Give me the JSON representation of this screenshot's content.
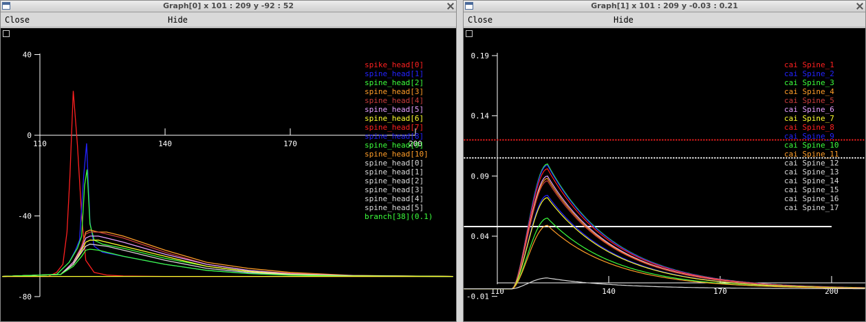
{
  "windows": [
    {
      "title": "Graph[0]  x 101 : 209  y -92 : 52",
      "menu": {
        "close": "Close",
        "hide": "Hide"
      },
      "chart_data": {
        "type": "line",
        "xlim": [
          101,
          209
        ],
        "ylim": [
          -92,
          52
        ],
        "x_ticks": [
          "110",
          "140",
          "170",
          "200"
        ],
        "y_ticks": [
          "40",
          "0",
          "-40",
          "-80"
        ],
        "legend_location": "top-right",
        "legend": [
          {
            "text": "spike_head[0]",
            "color": "#ff2020"
          },
          {
            "text": "spine_head[1]",
            "color": "#2323ff"
          },
          {
            "text": "spine_head[2]",
            "color": "#3cff3c"
          },
          {
            "text": "spine_head[3]",
            "color": "#ff9d28"
          },
          {
            "text": "spine_head[4]",
            "color": "#c83c3c"
          },
          {
            "text": "spine_head[5]",
            "color": "#e6a0ff"
          },
          {
            "text": "spine_head[6]",
            "color": "#ffff30"
          },
          {
            "text": "spine_head[7]",
            "color": "#ff2020"
          },
          {
            "text": "spine_head[8]",
            "color": "#2323ff"
          },
          {
            "text": "spine_head[9]",
            "color": "#3cff3c"
          },
          {
            "text": "spine_head[10]",
            "color": "#ff9d28"
          },
          {
            "text": "spine_head[0]",
            "color": "#d9d9d9"
          },
          {
            "text": "spine_head[1]",
            "color": "#d9d9d9"
          },
          {
            "text": "spine_head[2]",
            "color": "#d9d9d9"
          },
          {
            "text": "spine_head[3]",
            "color": "#d9d9d9"
          },
          {
            "text": "spine_head[4]",
            "color": "#d9d9d9"
          },
          {
            "text": "spine_head[5]",
            "color": "#d9d9d9"
          },
          {
            "text": "branch[38](0.1)",
            "color": "#3cff3c"
          }
        ],
        "series": [
          {
            "color": "#ff2020",
            "x": [
              101,
              112,
              114,
              115.5,
              116.5,
              117.2,
              118,
              119,
              120,
              121,
              123,
              126,
              130,
              140,
              150,
              160,
              180,
              209
            ],
            "y": [
              -70,
              -70,
              -68,
              -64,
              -48,
              -20,
              22,
              -5,
              -40,
              -62,
              -68,
              -69.3,
              -69.8,
              -70,
              -70,
              -70,
              -70,
              -70
            ]
          },
          {
            "color": "#2323ff",
            "x": [
              101,
              114,
              117,
              118.5,
              119.5,
              120.5,
              121.2,
              122,
              123,
              125,
              130,
              140,
              150,
              160,
              170,
              185,
              209
            ],
            "y": [
              -70,
              -69,
              -63,
              -57,
              -52,
              -20,
              -4,
              -43,
              -55,
              -58,
              -60,
              -64,
              -67,
              -68.5,
              -69.3,
              -69.8,
              -70
            ]
          },
          {
            "color": "#3cff3c",
            "x": [
              101,
              114,
              117,
              119,
              120,
              120.7,
              121.3,
              122,
              123,
              125,
              130,
              140,
              150,
              160,
              170,
              185,
              209
            ],
            "y": [
              -70,
              -69,
              -63,
              -56,
              -50,
              -25,
              -17,
              -44,
              -52,
              -54,
              -56,
              -61,
              -65,
              -67.5,
              -69,
              -69.8,
              -70
            ]
          },
          {
            "color": "#ff9d28",
            "x": [
              101,
              115,
              118,
              120,
              121,
              122,
              124,
              126,
              130,
              140,
              150,
              160,
              170,
              185,
              209
            ],
            "y": [
              -70,
              -69,
              -63,
              -55,
              -48,
              -47,
              -48,
              -48,
              -50,
              -57,
              -63,
              -66,
              -68,
              -69.5,
              -70
            ]
          },
          {
            "color": "#c83c3c",
            "x": [
              101,
              115,
              118,
              120,
              121,
              122,
              124,
              126,
              130,
              140,
              150,
              160,
              170,
              185,
              209
            ],
            "y": [
              -70,
              -69,
              -63,
              -55,
              -49,
              -48,
              -48,
              -49,
              -51,
              -58,
              -64,
              -67,
              -68.5,
              -69.6,
              -70
            ]
          },
          {
            "color": "#e6a0ff",
            "x": [
              101,
              115,
              118,
              120,
              121,
              122,
              124,
              126,
              130,
              140,
              150,
              160,
              170,
              185,
              209
            ],
            "y": [
              -70,
              -69,
              -63,
              -56,
              -51,
              -50,
              -50,
              -51,
              -53,
              -59,
              -64,
              -67,
              -68.7,
              -69.6,
              -70
            ]
          },
          {
            "color": "#ffff30",
            "x": [
              101,
              115,
              118,
              120,
              121,
              122,
              124,
              126,
              130,
              140,
              150,
              160,
              170,
              185,
              209
            ],
            "y": [
              -70,
              -69,
              -64,
              -57,
              -53,
              -52,
              -52,
              -53,
              -55,
              -60,
              -65,
              -67.5,
              -69,
              -69.7,
              -70
            ]
          },
          {
            "color": "#d9d9d9",
            "x": [
              101,
              115,
              118,
              120,
              121,
              122,
              124,
              126,
              130,
              140,
              150,
              160,
              170,
              185,
              209
            ],
            "y": [
              -70,
              -69,
              -64,
              -58,
              -55,
              -54,
              -54.5,
              -55,
              -57,
              -62,
              -66,
              -68,
              -69.2,
              -69.8,
              -70
            ]
          },
          {
            "color": "#3cff3c",
            "x": [
              101,
              115,
              118,
              120,
              121,
              122,
              124,
              126,
              130,
              140,
              150,
              160,
              170,
              185,
              209
            ],
            "y": [
              -70,
              -69,
              -65,
              -60,
              -57,
              -56.5,
              -57,
              -58,
              -60,
              -64,
              -67,
              -68.6,
              -69.4,
              -69.9,
              -70
            ]
          },
          {
            "color": "#ffff30",
            "x": [
              101,
              209
            ],
            "y": [
              -70,
              -70
            ]
          }
        ]
      }
    },
    {
      "title": "Graph[1]  x 101 : 209  y -0.03 : 0.21",
      "menu": {
        "close": "Close",
        "hide": "Hide"
      },
      "chart_data": {
        "type": "line",
        "xlim": [
          101,
          209
        ],
        "ylim": [
          -0.03,
          0.21
        ],
        "x_ticks": [
          "110",
          "140",
          "170",
          "200"
        ],
        "y_ticks": [
          "0.19",
          "0.14",
          "0.09",
          "0.04",
          "-0.01"
        ],
        "legend_location": "top-right",
        "legend": [
          {
            "text": "cai Spine_1",
            "color": "#ff2020"
          },
          {
            "text": "cai Spine_2",
            "color": "#2323ff"
          },
          {
            "text": "cai Spine_3",
            "color": "#3cff3c"
          },
          {
            "text": "cai Spine_4",
            "color": "#ff9d28"
          },
          {
            "text": "cai Spine_5",
            "color": "#c83c3c"
          },
          {
            "text": "cai Spine_6",
            "color": "#e6a0ff"
          },
          {
            "text": "cai Spine_7",
            "color": "#ffff30"
          },
          {
            "text": "cai Spine_8",
            "color": "#ff2020"
          },
          {
            "text": "cai Spine_9",
            "color": "#2323ff"
          },
          {
            "text": "cai Spine_10",
            "color": "#3cff3c"
          },
          {
            "text": "cai Spine_11",
            "color": "#ff9d28"
          },
          {
            "text": "cai Spine_12",
            "color": "#d9d9d9"
          },
          {
            "text": "cai Spine_13",
            "color": "#d9d9d9"
          },
          {
            "text": "cai Spine_14",
            "color": "#d9d9d9"
          },
          {
            "text": "cai Spine_15",
            "color": "#d9d9d9"
          },
          {
            "text": "cai Spine_16",
            "color": "#d9d9d9"
          },
          {
            "text": "cai Spine_17",
            "color": "#d9d9d9"
          }
        ],
        "hlines": [
          {
            "y": 0.12,
            "color": "#ff2020",
            "dashed": true,
            "x": [
              101,
              209
            ]
          },
          {
            "y": 0.105,
            "color": "#ffffff",
            "dashed": true,
            "x": [
              101,
              209
            ]
          },
          {
            "y": 0.048,
            "color": "#ffffff",
            "dashed": false,
            "x": [
              101,
              200
            ]
          }
        ],
        "series": [
          {
            "color": "#3cff3c",
            "peak": 0.1
          },
          {
            "color": "#2323ff",
            "peak": 0.099
          },
          {
            "color": "#ff2020",
            "peak": 0.096
          },
          {
            "color": "#e6a0ff",
            "peak": 0.09
          },
          {
            "color": "#ff9d28",
            "peak": 0.088
          },
          {
            "color": "#c83c3c",
            "peak": 0.086
          },
          {
            "color": "#2323ff",
            "peak": 0.074
          },
          {
            "color": "#ffff30",
            "peak": 0.072
          },
          {
            "color": "#3cff3c",
            "peak": 0.055
          },
          {
            "color": "#ff9d28",
            "peak": 0.049
          },
          {
            "color": "#d9d9d9",
            "peak": 0.0053
          }
        ],
        "series_shape": {
          "baseline": -0.0037,
          "rise_start": 114,
          "peak_x": 123.5,
          "decay_to": 200
        }
      }
    }
  ]
}
